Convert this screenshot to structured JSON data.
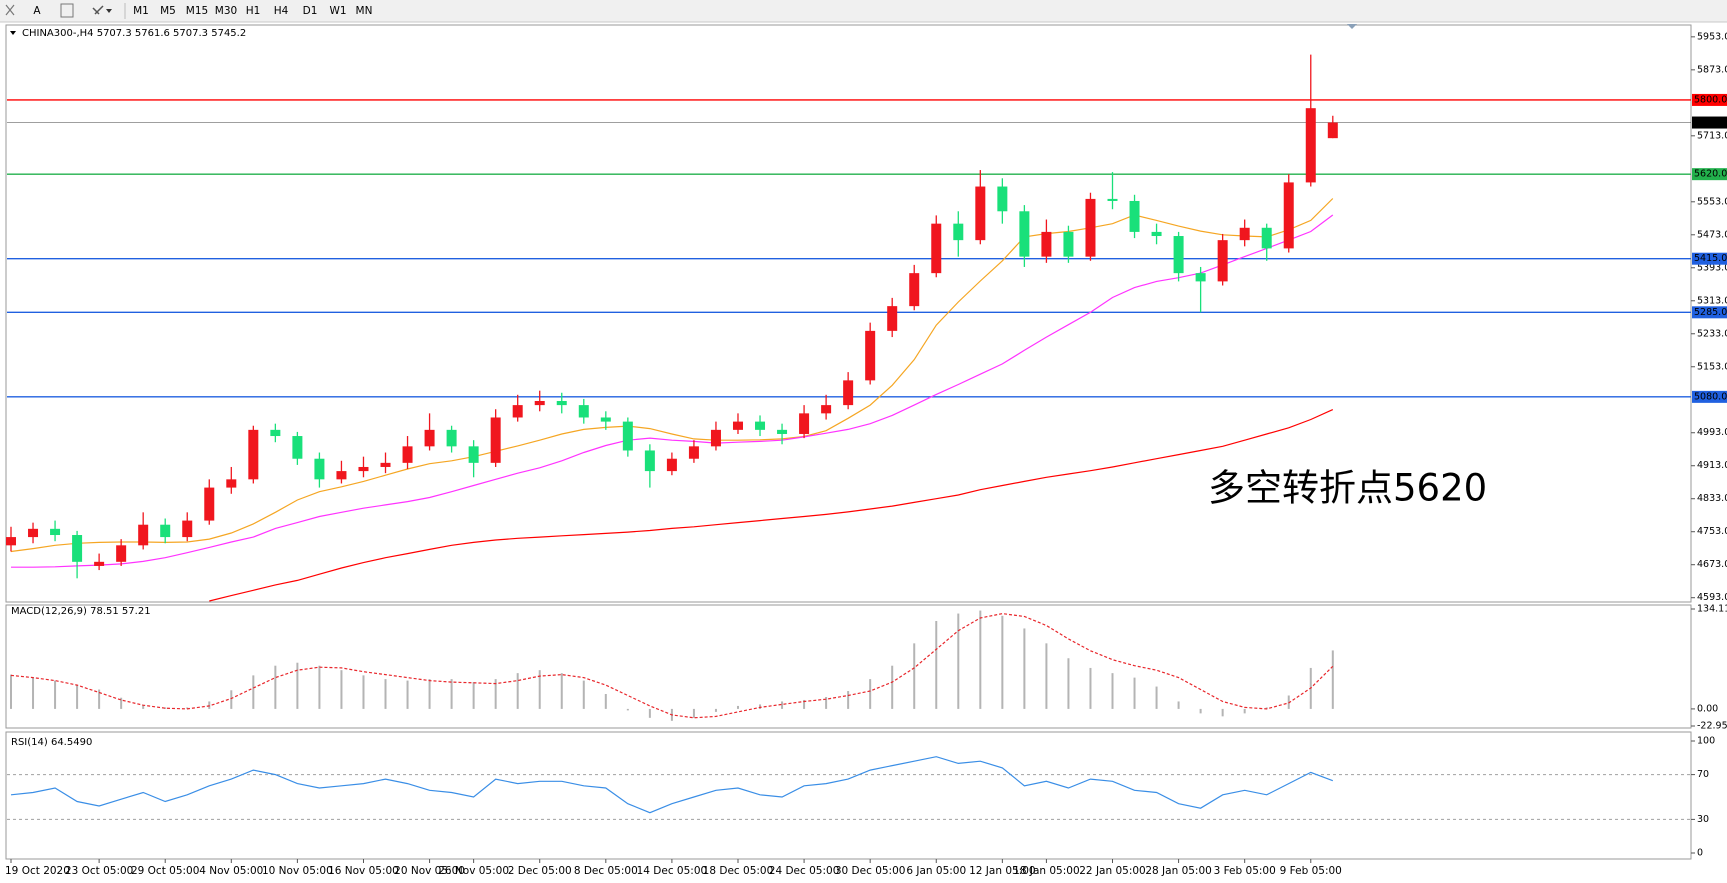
{
  "toolbar": {
    "buttons": [
      "A",
      "M1",
      "M5",
      "M15",
      "M30",
      "H1",
      "H4",
      "D1",
      "W1",
      "MN"
    ]
  },
  "chart_data": [
    {
      "type": "candlestick",
      "title": "CHINA300-,H4  5707.3 5761.6 5707.3 5745.2",
      "annotation": "多空转折点5620",
      "annotation_color": "#e8262b",
      "colors": {
        "up": "#f0161e",
        "down": "#19e07a"
      },
      "categories": [
        "19 Oct 2020",
        null,
        null,
        null,
        "23 Oct 05:00",
        null,
        null,
        "29 Oct 05:00",
        null,
        null,
        "4 Nov 05:00",
        null,
        null,
        "10 Nov 05:00",
        null,
        null,
        "16 Nov 05:00",
        null,
        null,
        "20 Nov 05:00",
        null,
        "26 Nov 05:00",
        null,
        null,
        "2 Dec 05:00",
        null,
        null,
        "8 Dec 05:00",
        null,
        null,
        "14 Dec 05:00",
        null,
        null,
        "18 Dec 05:00",
        null,
        null,
        "24 Dec 05:00",
        null,
        null,
        "30 Dec 05:00",
        null,
        null,
        "6 Jan 05:00",
        null,
        null,
        "12 Jan 05:00",
        null,
        "18 Jan 05:00",
        null,
        null,
        "22 Jan 05:00",
        null,
        null,
        "28 Jan 05:00",
        null,
        null,
        "3 Feb 05:00",
        null,
        null,
        "9 Feb 05:00",
        null
      ],
      "open": [
        4720,
        4740,
        4760,
        4745,
        4670,
        4680,
        4720,
        4770,
        4740,
        4780,
        4860,
        4880,
        5000,
        4985,
        4930,
        4880,
        4900,
        4910,
        4920,
        4960,
        5000,
        4960,
        4920,
        5030,
        5060,
        5070,
        5060,
        5030,
        5020,
        4950,
        4900,
        4930,
        4960,
        5000,
        5020,
        5000,
        4990,
        5040,
        5060,
        5120,
        5240,
        5300,
        5380,
        5500,
        5460,
        5590,
        5530,
        5420,
        5480,
        5420,
        5560,
        5555,
        5480,
        5470,
        5380,
        5360,
        5460,
        5490,
        5440,
        5600,
        5707.3
      ],
      "high": [
        4765,
        4775,
        4780,
        4755,
        4700,
        4735,
        4800,
        4785,
        4800,
        4880,
        4910,
        5010,
        5015,
        4995,
        4945,
        4925,
        4935,
        4945,
        4985,
        5040,
        5010,
        4975,
        5050,
        5085,
        5095,
        5090,
        5075,
        5045,
        5030,
        4965,
        4945,
        4975,
        5020,
        5040,
        5035,
        5015,
        5060,
        5085,
        5140,
        5260,
        5320,
        5400,
        5520,
        5530,
        5630,
        5610,
        5545,
        5510,
        5495,
        5575,
        5625,
        5570,
        5500,
        5480,
        5395,
        5475,
        5510,
        5500,
        5620,
        5910,
        5761.6
      ],
      "low": [
        4705,
        4725,
        4730,
        4640,
        4660,
        4670,
        4710,
        4725,
        4730,
        4770,
        4845,
        4870,
        4970,
        4915,
        4860,
        4870,
        4885,
        4895,
        4905,
        4950,
        4945,
        4885,
        4910,
        5020,
        5045,
        5040,
        5015,
        5000,
        4935,
        4860,
        4890,
        4920,
        4950,
        4990,
        4985,
        4965,
        4980,
        5025,
        5050,
        5110,
        5225,
        5290,
        5370,
        5420,
        5450,
        5500,
        5395,
        5405,
        5405,
        5410,
        5535,
        5465,
        5450,
        5360,
        5285,
        5350,
        5445,
        5410,
        5430,
        5590,
        5707.3
      ],
      "close": [
        4740,
        4760,
        4745,
        4680,
        4680,
        4720,
        4770,
        4740,
        4780,
        4860,
        4880,
        5000,
        4985,
        4930,
        4880,
        4900,
        4910,
        4920,
        4960,
        5000,
        4960,
        4920,
        5030,
        5060,
        5070,
        5060,
        5030,
        5020,
        4950,
        4900,
        4930,
        4960,
        5000,
        5020,
        5000,
        4990,
        5040,
        5060,
        5120,
        5240,
        5300,
        5380,
        5500,
        5460,
        5590,
        5530,
        5420,
        5480,
        5420,
        5560,
        5555,
        5480,
        5470,
        5380,
        5360,
        5460,
        5490,
        5440,
        5600,
        5780,
        5745.2
      ],
      "series": [
        {
          "color": "#f5a623",
          "values": [
            4705,
            4712,
            4720,
            4725,
            4727,
            4728,
            4728,
            4727,
            4728,
            4735,
            4750,
            4772,
            4800,
            4830,
            4850,
            4862,
            4875,
            4890,
            4905,
            4918,
            4925,
            4935,
            4948,
            4961,
            4975,
            4990,
            5001,
            5006,
            5009,
            5003,
            4990,
            4978,
            4975,
            4975,
            4976,
            4978,
            4984,
            4998,
            5028,
            5060,
            5108,
            5170,
            5254,
            5310,
            5361,
            5410,
            5468,
            5476,
            5481,
            5490,
            5500,
            5521,
            5508,
            5494,
            5482,
            5473,
            5470,
            5468,
            5485,
            5508,
            5561
          ]
        },
        {
          "color": "#ff33ff",
          "values": [
            4667,
            4667,
            4668,
            4670,
            4672,
            4675,
            4681,
            4690,
            4702,
            4715,
            4728,
            4740,
            4761,
            4775,
            4790,
            4800,
            4810,
            4818,
            4826,
            4836,
            4850,
            4865,
            4880,
            4895,
            4908,
            4925,
            4945,
            4962,
            4975,
            4980,
            4975,
            4972,
            4968,
            4970,
            4972,
            4975,
            4983,
            4992,
            5001,
            5015,
            5035,
            5060,
            5086,
            5110,
            5135,
            5160,
            5193,
            5225,
            5255,
            5285,
            5321,
            5345,
            5360,
            5369,
            5380,
            5400,
            5420,
            5440,
            5460,
            5481,
            5521
          ]
        },
        {
          "color": "#ff0000",
          "values": [
            null,
            null,
            null,
            null,
            null,
            null,
            null,
            null,
            null,
            4585,
            4598,
            4611,
            4624,
            4635,
            4650,
            4665,
            4678,
            4690,
            4700,
            4710,
            4720,
            4727,
            4733,
            4737,
            4740,
            4743,
            4746,
            4749,
            4752,
            4756,
            4761,
            4765,
            4770,
            4775,
            4780,
            4785,
            4790,
            4795,
            4801,
            4808,
            4815,
            4824,
            4833,
            4842,
            4855,
            4865,
            4875,
            4885,
            4893,
            4901,
            4910,
            4920,
            4930,
            4940,
            4950,
            4960,
            4975,
            4990,
            5005,
            5025,
            5049
          ]
        }
      ],
      "hlines": [
        {
          "value": 5800,
          "label": "5800.0",
          "color": "#ff0000"
        },
        {
          "value": 5745.2,
          "label": "5745.2",
          "color": "#000000"
        },
        {
          "value": 5620,
          "label": "5620.0",
          "color": "#22b14c"
        },
        {
          "value": 5415,
          "label": "5415.0",
          "color": "#2060e0"
        },
        {
          "value": 5285,
          "label": "5285.0",
          "color": "#2060e0"
        },
        {
          "value": 5080,
          "label": "5080.0",
          "color": "#2060e0"
        }
      ],
      "ylim": [
        4585,
        5972
      ],
      "yticks": [
        {
          "value": 4593,
          "label": "4593.0"
        },
        {
          "value": 4673,
          "label": "4673.0"
        },
        {
          "value": 4753,
          "label": "4753.0"
        },
        {
          "value": 4833,
          "label": "4833.0"
        },
        {
          "value": 4913,
          "label": "4913.0"
        },
        {
          "value": 4993,
          "label": "4993.0"
        },
        {
          "value": 5153,
          "label": "5153.0"
        },
        {
          "value": 5233,
          "label": "5233.0"
        },
        {
          "value": 5313,
          "label": "5313.0"
        },
        {
          "value": 5393,
          "label": "5393.0"
        },
        {
          "value": 5473,
          "label": "5473.0"
        },
        {
          "value": 5553,
          "label": "5553.0"
        },
        {
          "value": 5713,
          "label": "5713.0"
        },
        {
          "value": 5873,
          "label": "5873.0"
        },
        {
          "value": 5953,
          "label": "5953.0"
        }
      ]
    },
    {
      "type": "macd",
      "title": "MACD(12,26,9) 78.51 57.21",
      "color": "#b4b4b4",
      "values": [
        46,
        42,
        38,
        32,
        26,
        15,
        5,
        2,
        2,
        10,
        25,
        45,
        58,
        62,
        58,
        52,
        45,
        40,
        38,
        40,
        40,
        36,
        40,
        48,
        52,
        48,
        38,
        20,
        -2,
        -12,
        -16,
        -12,
        -4,
        4,
        6,
        10,
        12,
        16,
        24,
        40,
        58,
        88,
        118,
        128,
        132,
        125,
        108,
        88,
        68,
        55,
        48,
        42,
        30,
        10,
        -6,
        -10,
        -6,
        2,
        18,
        55,
        78.51
      ],
      "signal": {
        "color": "#e8262b",
        "values": [
          45,
          42,
          38,
          32,
          22,
          12,
          5,
          1,
          0,
          4,
          14,
          28,
          42,
          52,
          56,
          55,
          50,
          46,
          42,
          38,
          36,
          35,
          34,
          38,
          44,
          46,
          42,
          32,
          18,
          4,
          -8,
          -12,
          -10,
          -4,
          2,
          6,
          10,
          13,
          18,
          24,
          36,
          55,
          80,
          105,
          122,
          128,
          124,
          112,
          94,
          78,
          66,
          58,
          52,
          42,
          26,
          10,
          2,
          0,
          8,
          28,
          57.21
        ]
      },
      "ylim": [
        -22.95,
        134.11
      ],
      "yticks": [
        -22.95,
        {
          "value": 0,
          "label": "0.00"
        },
        134.11
      ]
    },
    {
      "type": "rsi",
      "title": "RSI(14) 64.5490",
      "color": "#3a8ee6",
      "values": [
        52,
        54,
        58,
        46,
        42,
        48,
        54,
        46,
        52,
        60,
        66,
        74,
        70,
        62,
        58,
        60,
        62,
        66,
        62,
        56,
        54,
        50,
        66,
        62,
        64,
        64,
        60,
        58,
        44,
        36,
        44,
        50,
        56,
        58,
        52,
        50,
        60,
        62,
        66,
        74,
        78,
        82,
        86,
        80,
        82,
        76,
        60,
        64,
        58,
        66,
        64,
        56,
        54,
        44,
        40,
        52,
        56,
        52,
        62,
        72,
        64.549
      ],
      "ylim": [
        0,
        100
      ],
      "yticks": [
        0,
        30,
        70,
        100
      ]
    }
  ]
}
